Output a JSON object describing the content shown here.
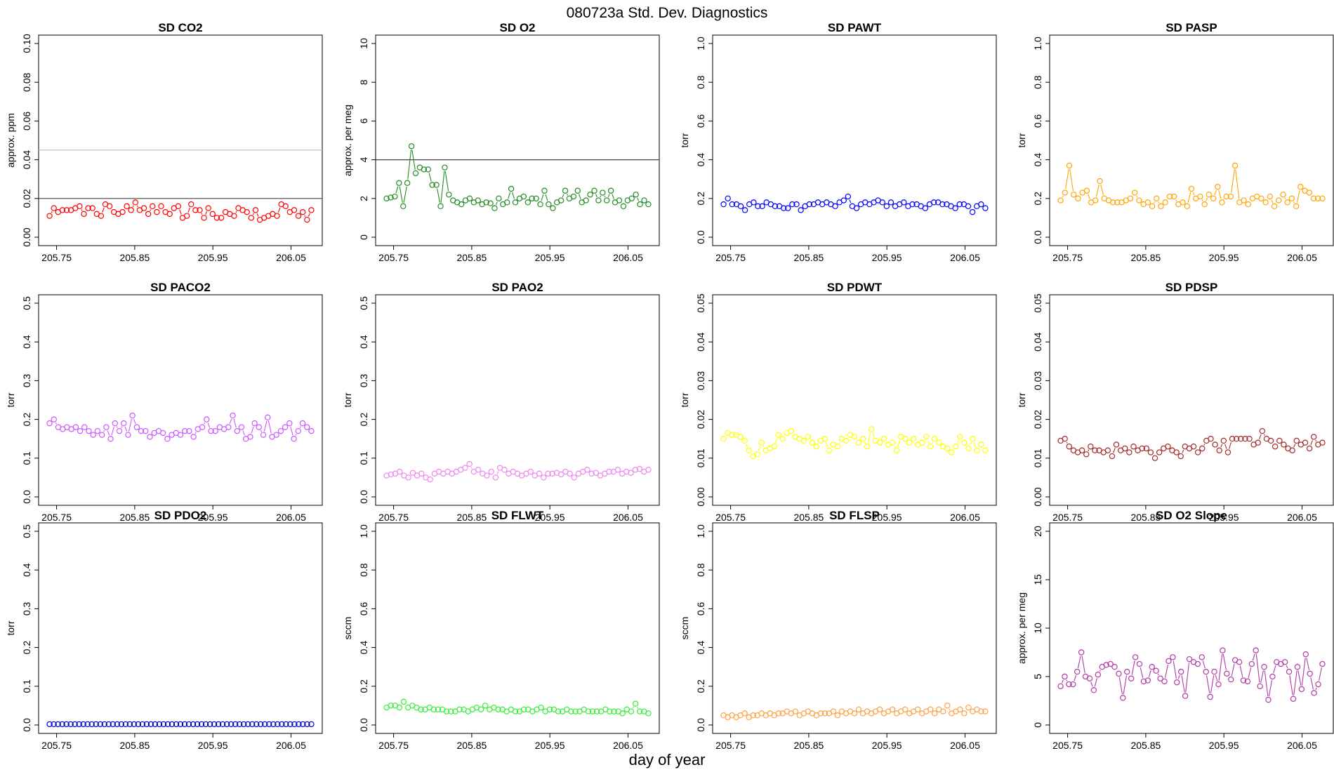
{
  "figure": {
    "title": "080723a   Std. Dev. Diagnostics",
    "xlabel": "day of year"
  },
  "chart_data": [
    {
      "type": "line",
      "title": "SD CO2",
      "ylabel": "approx. ppm",
      "ylim": [
        0,
        0.1
      ],
      "yticks": [
        "0.00",
        "0.02",
        "0.04",
        "0.06",
        "0.08",
        "0.10"
      ],
      "xticks": [
        "205.75",
        "205.85",
        "205.95",
        "206.05"
      ],
      "color": "#ff0000",
      "hlines": [
        {
          "y": 0.02,
          "color": "#444444"
        },
        {
          "y": 0.045,
          "color": "#bbbbbb"
        }
      ],
      "series": [
        {
          "values": [
            0.011,
            0.015,
            0.013,
            0.014,
            0.014,
            0.014,
            0.015,
            0.016,
            0.012,
            0.015,
            0.015,
            0.012,
            0.011,
            0.017,
            0.016,
            0.013,
            0.012,
            0.013,
            0.016,
            0.014,
            0.018,
            0.014,
            0.015,
            0.012,
            0.016,
            0.013,
            0.016,
            0.013,
            0.012,
            0.015,
            0.016,
            0.01,
            0.011,
            0.017,
            0.014,
            0.014,
            0.01,
            0.015,
            0.012,
            0.01,
            0.01,
            0.013,
            0.012,
            0.011,
            0.015,
            0.014,
            0.013,
            0.01,
            0.014,
            0.009,
            0.01,
            0.011,
            0.012,
            0.011,
            0.017,
            0.016,
            0.013,
            0.014,
            0.011,
            0.013,
            0.009,
            0.014
          ]
        }
      ]
    },
    {
      "type": "line",
      "title": "SD O2",
      "ylabel": "approx. per meg",
      "ylim": [
        0,
        10
      ],
      "yticks": [
        "0",
        "2",
        "4",
        "6",
        "8",
        "10"
      ],
      "xticks": [
        "205.75",
        "205.85",
        "205.95",
        "206.05"
      ],
      "color": "#228b22",
      "hlines": [
        {
          "y": 4,
          "color": "#444444"
        }
      ],
      "series": [
        {
          "values": [
            2.0,
            2.05,
            2.1,
            2.8,
            1.6,
            2.8,
            4.7,
            3.3,
            3.6,
            3.5,
            3.5,
            2.7,
            2.7,
            1.6,
            3.6,
            2.2,
            1.9,
            1.8,
            1.7,
            1.9,
            2.0,
            1.8,
            1.9,
            1.7,
            1.8,
            1.75,
            1.5,
            2.0,
            1.7,
            1.8,
            2.5,
            1.8,
            2.0,
            2.1,
            1.8,
            2.0,
            2.0,
            1.7,
            2.4,
            1.7,
            1.5,
            1.8,
            1.9,
            2.4,
            2.0,
            2.1,
            2.4,
            1.8,
            1.9,
            2.2,
            2.4,
            1.9,
            2.3,
            1.9,
            2.4,
            1.8,
            1.9,
            1.6,
            1.9,
            2.0,
            2.2,
            1.7,
            1.9,
            1.7
          ]
        }
      ]
    },
    {
      "type": "line",
      "title": "SD PAWT",
      "ylabel": "torr",
      "ylim": [
        0,
        1
      ],
      "yticks": [
        "0.0",
        "0.2",
        "0.4",
        "0.6",
        "0.8",
        "1.0"
      ],
      "xticks": [
        "205.75",
        "205.85",
        "205.95",
        "206.05"
      ],
      "color": "#0000ff",
      "hlines": [],
      "series": [
        {
          "values": [
            0.17,
            0.2,
            0.17,
            0.17,
            0.16,
            0.14,
            0.17,
            0.18,
            0.16,
            0.16,
            0.18,
            0.17,
            0.16,
            0.16,
            0.15,
            0.15,
            0.17,
            0.17,
            0.14,
            0.16,
            0.17,
            0.17,
            0.18,
            0.17,
            0.18,
            0.17,
            0.16,
            0.18,
            0.19,
            0.21,
            0.16,
            0.15,
            0.17,
            0.18,
            0.17,
            0.18,
            0.19,
            0.18,
            0.16,
            0.18,
            0.16,
            0.17,
            0.18,
            0.16,
            0.17,
            0.17,
            0.16,
            0.15,
            0.17,
            0.18,
            0.18,
            0.17,
            0.17,
            0.16,
            0.15,
            0.17,
            0.17,
            0.16,
            0.13,
            0.16,
            0.17,
            0.15
          ]
        }
      ]
    },
    {
      "type": "line",
      "title": "SD PASP",
      "ylabel": "torr",
      "ylim": [
        0,
        1
      ],
      "yticks": [
        "0.0",
        "0.2",
        "0.4",
        "0.6",
        "0.8",
        "1.0"
      ],
      "xticks": [
        "205.75",
        "205.85",
        "205.95",
        "206.05"
      ],
      "color": "#ffa500",
      "hlines": [],
      "series": [
        {
          "values": [
            0.19,
            0.23,
            0.37,
            0.22,
            0.2,
            0.23,
            0.24,
            0.18,
            0.19,
            0.29,
            0.2,
            0.19,
            0.18,
            0.18,
            0.18,
            0.19,
            0.2,
            0.23,
            0.19,
            0.17,
            0.18,
            0.16,
            0.2,
            0.16,
            0.18,
            0.21,
            0.21,
            0.17,
            0.18,
            0.16,
            0.25,
            0.2,
            0.21,
            0.17,
            0.22,
            0.2,
            0.26,
            0.18,
            0.21,
            0.21,
            0.37,
            0.18,
            0.19,
            0.17,
            0.2,
            0.21,
            0.2,
            0.18,
            0.21,
            0.16,
            0.19,
            0.22,
            0.18,
            0.2,
            0.16,
            0.26,
            0.24,
            0.23,
            0.2,
            0.2,
            0.2
          ]
        }
      ]
    },
    {
      "type": "line",
      "title": "SD PACO2",
      "ylabel": "torr",
      "ylim": [
        0,
        0.5
      ],
      "yticks": [
        "0.0",
        "0.1",
        "0.2",
        "0.3",
        "0.4",
        "0.5"
      ],
      "xticks": [
        "205.75",
        "205.85",
        "205.95",
        "206.05"
      ],
      "color": "#cc55ff",
      "hlines": [],
      "series": [
        {
          "values": [
            0.19,
            0.2,
            0.18,
            0.175,
            0.18,
            0.175,
            0.18,
            0.17,
            0.18,
            0.17,
            0.16,
            0.17,
            0.16,
            0.18,
            0.15,
            0.19,
            0.17,
            0.19,
            0.16,
            0.21,
            0.18,
            0.17,
            0.17,
            0.155,
            0.165,
            0.17,
            0.165,
            0.15,
            0.16,
            0.165,
            0.16,
            0.17,
            0.17,
            0.155,
            0.175,
            0.18,
            0.2,
            0.17,
            0.17,
            0.18,
            0.175,
            0.18,
            0.21,
            0.17,
            0.18,
            0.15,
            0.155,
            0.19,
            0.18,
            0.16,
            0.205,
            0.155,
            0.16,
            0.17,
            0.18,
            0.19,
            0.15,
            0.17,
            0.19,
            0.18,
            0.17
          ]
        }
      ]
    },
    {
      "type": "line",
      "title": "SD PAO2",
      "ylabel": "torr",
      "ylim": [
        0,
        0.5
      ],
      "yticks": [
        "0.0",
        "0.1",
        "0.2",
        "0.3",
        "0.4",
        "0.5"
      ],
      "xticks": [
        "205.75",
        "205.85",
        "205.95",
        "206.05"
      ],
      "color": "#ee88ee",
      "hlines": [],
      "series": [
        {
          "values": [
            0.055,
            0.058,
            0.06,
            0.065,
            0.055,
            0.05,
            0.062,
            0.055,
            0.06,
            0.05,
            0.045,
            0.06,
            0.065,
            0.06,
            0.065,
            0.06,
            0.065,
            0.07,
            0.075,
            0.085,
            0.065,
            0.07,
            0.06,
            0.055,
            0.065,
            0.05,
            0.075,
            0.07,
            0.06,
            0.065,
            0.06,
            0.055,
            0.06,
            0.065,
            0.055,
            0.06,
            0.05,
            0.06,
            0.06,
            0.062,
            0.058,
            0.065,
            0.06,
            0.05,
            0.06,
            0.065,
            0.07,
            0.06,
            0.062,
            0.055,
            0.06,
            0.065,
            0.065,
            0.07,
            0.06,
            0.065,
            0.062,
            0.07,
            0.072,
            0.065,
            0.07
          ]
        }
      ]
    },
    {
      "type": "line",
      "title": "SD PDWT",
      "ylabel": "torr",
      "ylim": [
        0,
        0.05
      ],
      "yticks": [
        "0.00",
        "0.01",
        "0.02",
        "0.03",
        "0.04",
        "0.05"
      ],
      "xticks": [
        "205.75",
        "205.85",
        "205.95",
        "206.05"
      ],
      "color": "#ffff00",
      "hlines": [],
      "series": [
        {
          "values": [
            0.015,
            0.0165,
            0.016,
            0.016,
            0.0155,
            0.0145,
            0.012,
            0.0105,
            0.011,
            0.014,
            0.012,
            0.0125,
            0.013,
            0.016,
            0.015,
            0.0165,
            0.017,
            0.0155,
            0.015,
            0.0145,
            0.0155,
            0.014,
            0.013,
            0.0145,
            0.015,
            0.012,
            0.0135,
            0.013,
            0.015,
            0.0145,
            0.016,
            0.0155,
            0.014,
            0.015,
            0.013,
            0.0175,
            0.0145,
            0.014,
            0.015,
            0.0135,
            0.014,
            0.012,
            0.0155,
            0.015,
            0.014,
            0.015,
            0.0135,
            0.014,
            0.0155,
            0.013,
            0.015,
            0.014,
            0.013,
            0.0125,
            0.0115,
            0.013,
            0.0155,
            0.014,
            0.0125,
            0.015,
            0.012,
            0.0135,
            0.012
          ]
        }
      ]
    },
    {
      "type": "line",
      "title": "SD PDSP",
      "ylabel": "torr",
      "ylim": [
        0,
        0.05
      ],
      "yticks": [
        "0.00",
        "0.01",
        "0.02",
        "0.03",
        "0.04",
        "0.05"
      ],
      "xticks": [
        "205.75",
        "205.85",
        "205.95",
        "206.05"
      ],
      "color": "#a52a2a",
      "hlines": [],
      "series": [
        {
          "values": [
            0.0145,
            0.015,
            0.013,
            0.012,
            0.0115,
            0.012,
            0.011,
            0.013,
            0.012,
            0.012,
            0.0115,
            0.012,
            0.0105,
            0.0135,
            0.012,
            0.0125,
            0.0115,
            0.013,
            0.012,
            0.0125,
            0.0125,
            0.0115,
            0.01,
            0.0115,
            0.0125,
            0.013,
            0.012,
            0.0115,
            0.0105,
            0.013,
            0.0125,
            0.013,
            0.0115,
            0.0125,
            0.0145,
            0.015,
            0.0135,
            0.012,
            0.0145,
            0.0115,
            0.015,
            0.015,
            0.015,
            0.015,
            0.015,
            0.0135,
            0.014,
            0.017,
            0.015,
            0.0145,
            0.013,
            0.0145,
            0.0135,
            0.0125,
            0.012,
            0.0145,
            0.0135,
            0.014,
            0.0125,
            0.0155,
            0.0135,
            0.014
          ]
        }
      ]
    },
    {
      "type": "line",
      "title": "SD PDO2",
      "ylabel": "torr",
      "ylim": [
        0,
        0.5
      ],
      "yticks": [
        "0.0",
        "0.1",
        "0.2",
        "0.3",
        "0.4",
        "0.5"
      ],
      "xticks": [
        "205.75",
        "205.85",
        "205.95",
        "206.05"
      ],
      "color": "#0000cd",
      "hlines": [],
      "series": [
        {
          "values": [
            0.002,
            0.002,
            0.002,
            0.002,
            0.002,
            0.002,
            0.002,
            0.002,
            0.002,
            0.002,
            0.002,
            0.002,
            0.002,
            0.002,
            0.002,
            0.002,
            0.002,
            0.002,
            0.002,
            0.002,
            0.002,
            0.002,
            0.002,
            0.002,
            0.002,
            0.002,
            0.002,
            0.002,
            0.002,
            0.002,
            0.002,
            0.002,
            0.002,
            0.002,
            0.002,
            0.002,
            0.002,
            0.002,
            0.002,
            0.002,
            0.002,
            0.002,
            0.002,
            0.002,
            0.002,
            0.002,
            0.002,
            0.002,
            0.002,
            0.002,
            0.002,
            0.002,
            0.002,
            0.002,
            0.002,
            0.002,
            0.002,
            0.002,
            0.002,
            0.002,
            0.002,
            0.002,
            0.002
          ]
        }
      ]
    },
    {
      "type": "line",
      "title": "SD FLWT",
      "ylabel": "sccm",
      "ylim": [
        0,
        1
      ],
      "yticks": [
        "0.0",
        "0.2",
        "0.4",
        "0.6",
        "0.8",
        "1.0"
      ],
      "xticks": [
        "205.75",
        "205.85",
        "205.95",
        "206.05"
      ],
      "color": "#33ee33",
      "hlines": [],
      "series": [
        {
          "values": [
            0.09,
            0.1,
            0.1,
            0.09,
            0.12,
            0.09,
            0.1,
            0.09,
            0.08,
            0.08,
            0.09,
            0.08,
            0.08,
            0.08,
            0.07,
            0.07,
            0.07,
            0.08,
            0.08,
            0.07,
            0.08,
            0.09,
            0.08,
            0.1,
            0.08,
            0.09,
            0.08,
            0.08,
            0.07,
            0.08,
            0.07,
            0.07,
            0.08,
            0.08,
            0.07,
            0.08,
            0.09,
            0.07,
            0.08,
            0.08,
            0.07,
            0.07,
            0.08,
            0.07,
            0.07,
            0.07,
            0.08,
            0.07,
            0.07,
            0.07,
            0.07,
            0.08,
            0.07,
            0.07,
            0.07,
            0.06,
            0.08,
            0.07,
            0.11,
            0.07,
            0.07,
            0.06
          ]
        }
      ]
    },
    {
      "type": "line",
      "title": "SD FLSP",
      "ylabel": "sccm",
      "ylim": [
        0,
        1
      ],
      "yticks": [
        "0.0",
        "0.2",
        "0.4",
        "0.6",
        "0.8",
        "1.0"
      ],
      "xticks": [
        "205.75",
        "205.85",
        "205.95",
        "206.05"
      ],
      "color": "#ffa040",
      "hlines": [],
      "series": [
        {
          "values": [
            0.05,
            0.04,
            0.05,
            0.04,
            0.05,
            0.06,
            0.04,
            0.05,
            0.05,
            0.06,
            0.05,
            0.06,
            0.05,
            0.06,
            0.06,
            0.07,
            0.06,
            0.07,
            0.05,
            0.06,
            0.07,
            0.06,
            0.05,
            0.06,
            0.06,
            0.06,
            0.07,
            0.05,
            0.07,
            0.06,
            0.07,
            0.06,
            0.08,
            0.06,
            0.07,
            0.06,
            0.07,
            0.08,
            0.06,
            0.07,
            0.08,
            0.06,
            0.07,
            0.08,
            0.06,
            0.07,
            0.08,
            0.06,
            0.07,
            0.08,
            0.06,
            0.08,
            0.07,
            0.1,
            0.06,
            0.07,
            0.08,
            0.06,
            0.09,
            0.07,
            0.08,
            0.07,
            0.07
          ]
        }
      ]
    },
    {
      "type": "line",
      "title": "SD O2 Slope",
      "ylabel": "approx. per meg",
      "ylim": [
        0,
        20
      ],
      "yticks": [
        "0",
        "5",
        "10",
        "15",
        "20"
      ],
      "xticks": [
        "205.75",
        "205.85",
        "205.95",
        "206.05"
      ],
      "color": "#b03aa5",
      "hlines": [],
      "series": [
        {
          "values": [
            4.0,
            5.0,
            4.2,
            4.2,
            5.5,
            7.5,
            5.0,
            4.8,
            3.6,
            5.2,
            6.0,
            6.2,
            6.3,
            6.0,
            5.3,
            2.8,
            5.5,
            4.8,
            7.0,
            6.3,
            4.5,
            4.6,
            6.0,
            5.6,
            4.8,
            4.5,
            6.6,
            7.0,
            4.4,
            5.5,
            3.0,
            6.8,
            6.5,
            6.3,
            7.0,
            5.5,
            2.9,
            5.5,
            4.2,
            7.7,
            5.3,
            4.7,
            6.7,
            6.5,
            4.6,
            4.5,
            6.3,
            7.7,
            4.0,
            6.0,
            2.6,
            5.0,
            6.5,
            6.3,
            6.5,
            5.5,
            2.7,
            6.0,
            3.7,
            7.3,
            5.3,
            3.3,
            4.2,
            6.3
          ]
        }
      ]
    }
  ]
}
